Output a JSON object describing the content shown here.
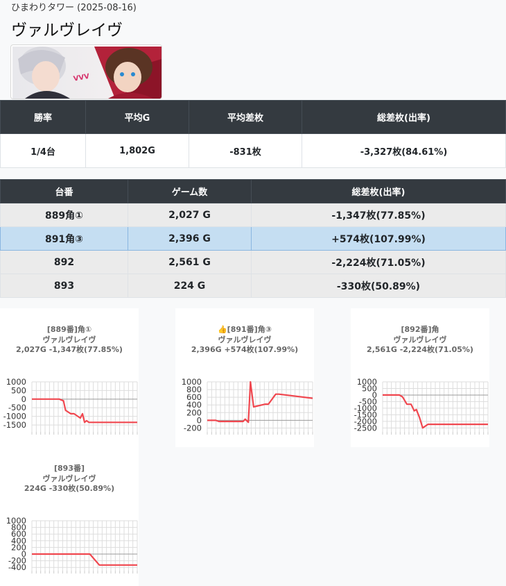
{
  "header": {
    "store_date": "ひまわりタワー (2025-08-16)",
    "title": "ヴァルヴレイヴ"
  },
  "summary": {
    "headers": [
      "勝率",
      "平均G",
      "平均差枚",
      "総差枚(出率)"
    ],
    "values": [
      "1/4台",
      "1,802G",
      "-831枚",
      "-3,327枚(84.61%)"
    ]
  },
  "machines": {
    "headers": [
      "台番",
      "ゲーム数",
      "総差枚(出率)"
    ],
    "rows": [
      {
        "number": "889角①",
        "games": "2,027 G",
        "diff": "-1,347枚(77.85%)",
        "highlight": false
      },
      {
        "number": "891角③",
        "games": "2,396 G",
        "diff": "+574枚(107.99%)",
        "highlight": true
      },
      {
        "number": "892",
        "games": "2,561 G",
        "diff": "-2,224枚(71.05%)",
        "highlight": false
      },
      {
        "number": "893",
        "games": "224 G",
        "diff": "-330枚(50.89%)",
        "highlight": false
      }
    ]
  },
  "colors": {
    "line": "#f0474f",
    "header_bg": "#343a40",
    "highlight_bg": "#c5def2"
  },
  "chart_data": [
    {
      "type": "line",
      "title_lines": [
        "[889番]角①",
        "ヴァルヴレイヴ",
        "2,027G -1,347枚(77.85%)"
      ],
      "yticks": [
        "1000",
        "500",
        "0",
        "-500",
        "-1000",
        "-1500"
      ],
      "ylim": [
        -1900,
        1000
      ],
      "x": [
        0,
        26,
        30,
        32,
        37,
        40,
        46,
        48,
        50,
        52,
        54,
        57,
        100
      ],
      "values": [
        0,
        0,
        -100,
        -650,
        -850,
        -850,
        -1100,
        -850,
        -1350,
        -1250,
        -1350,
        -1347,
        -1347
      ]
    },
    {
      "type": "line",
      "title_lines": [
        "👍[891番]角③",
        "ヴァルヴレイヴ",
        "2,396G +574枚(107.99%)"
      ],
      "yticks": [
        "1000",
        "800",
        "600",
        "400",
        "200",
        "0",
        "-200"
      ],
      "ylim": [
        -300,
        1000
      ],
      "x": [
        0,
        8,
        11,
        31,
        34,
        36,
        39,
        41,
        44,
        55,
        58,
        65,
        68,
        100
      ],
      "values": [
        0,
        0,
        -30,
        -30,
        -30,
        30,
        -50,
        1000,
        350,
        420,
        420,
        680,
        680,
        574
      ],
      "x_note": "x in percent of games"
    },
    {
      "type": "line",
      "title_lines": [
        "[892番]角",
        "ヴァルヴレイヴ",
        "2,561G -2,224枚(71.05%)"
      ],
      "yticks": [
        "1000",
        "500",
        "0",
        "-500",
        "-1000",
        "-1500",
        "-2000",
        "-2500"
      ],
      "ylim": [
        -2800,
        1000
      ],
      "x": [
        0,
        16,
        19,
        23,
        27,
        30,
        32,
        35,
        38,
        43,
        100
      ],
      "values": [
        0,
        0,
        -150,
        -700,
        -700,
        -1200,
        -1100,
        -1700,
        -2500,
        -2224,
        -2224
      ]
    },
    {
      "type": "line",
      "title_lines": [
        "[893番]",
        "ヴァルヴレイヴ",
        "224G -330枚(50.89%)"
      ],
      "yticks": [
        "1000",
        "800",
        "600",
        "400",
        "200",
        "0",
        "-200",
        "-400"
      ],
      "ylim": [
        -500,
        1000
      ],
      "x": [
        0,
        55,
        64,
        100
      ],
      "values": [
        0,
        0,
        -330,
        -330
      ]
    }
  ]
}
